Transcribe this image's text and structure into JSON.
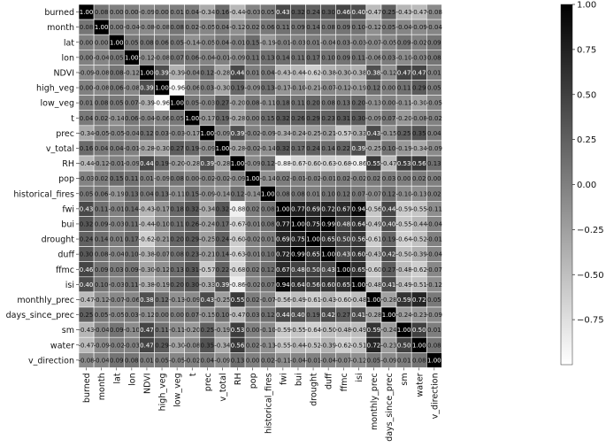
{
  "chart_data": {
    "type": "heatmap",
    "title": "",
    "xlabel": "",
    "ylabel": "",
    "variables": [
      "burned",
      "month",
      "lat",
      "lon",
      "NDVI",
      "high_veg",
      "low_veg",
      "t",
      "prec",
      "v_total",
      "RH",
      "pop",
      "historical_fires",
      "fwi",
      "bui",
      "drought",
      "duff",
      "ffmc",
      "isi",
      "monthly_prec",
      "days_since_prec",
      "sm",
      "water",
      "v_direction"
    ],
    "values": [
      [
        1.0,
        0.08,
        -0.0,
        -0.0,
        -0.09,
        -0.0,
        0.01,
        0.04,
        -0.34,
        0.16,
        -0.44,
        -0.03,
        0.05,
        0.43,
        0.32,
        0.24,
        0.3,
        0.46,
        0.4,
        -0.47,
        0.25,
        -0.43,
        -0.47,
        -0.08
      ],
      [
        0.08,
        1.0,
        -0.0,
        -0.04,
        -0.08,
        -0.08,
        0.08,
        0.02,
        -0.05,
        0.04,
        -0.12,
        0.02,
        0.06,
        0.11,
        0.09,
        0.14,
        0.08,
        0.09,
        0.1,
        -0.12,
        0.05,
        -0.04,
        -0.09,
        -0.04
      ],
      [
        -0.0,
        -0.0,
        1.0,
        0.05,
        0.08,
        0.06,
        0.05,
        -0.14,
        -0.05,
        0.04,
        -0.01,
        0.15,
        -0.19,
        -0.01,
        -0.03,
        0.01,
        -0.04,
        0.03,
        -0.03,
        -0.07,
        -0.05,
        0.09,
        -0.02,
        0.09
      ],
      [
        -0.0,
        -0.04,
        0.05,
        1.0,
        -0.12,
        -0.08,
        0.07,
        0.06,
        -0.04,
        -0.01,
        -0.09,
        0.11,
        0.13,
        0.14,
        0.11,
        0.17,
        0.1,
        0.09,
        0.11,
        -0.06,
        0.03,
        -0.1,
        -0.03,
        0.08
      ],
      [
        -0.09,
        -0.08,
        0.08,
        -0.12,
        1.0,
        0.39,
        -0.39,
        -0.04,
        0.12,
        -0.28,
        0.44,
        0.01,
        0.04,
        -0.43,
        -0.44,
        -0.62,
        -0.38,
        -0.3,
        -0.38,
        0.38,
        -0.12,
        0.47,
        0.47,
        0.01
      ],
      [
        -0.0,
        -0.08,
        0.06,
        -0.08,
        0.39,
        1.0,
        -0.96,
        -0.06,
        0.03,
        -0.3,
        0.19,
        -0.09,
        0.13,
        -0.17,
        -0.1,
        -0.21,
        -0.07,
        -0.12,
        -0.19,
        0.12,
        0.0,
        0.11,
        0.29,
        0.05
      ],
      [
        0.01,
        0.08,
        0.05,
        0.07,
        -0.39,
        -0.96,
        1.0,
        0.05,
        -0.03,
        0.27,
        -0.2,
        0.08,
        -0.11,
        0.18,
        0.11,
        0.2,
        0.08,
        0.13,
        0.2,
        -0.13,
        0.0,
        -0.11,
        -0.3,
        -0.05
      ],
      [
        0.04,
        0.02,
        -0.14,
        0.06,
        -0.04,
        -0.06,
        0.05,
        1.0,
        -0.17,
        0.19,
        -0.28,
        0.0,
        0.15,
        0.32,
        0.26,
        0.29,
        0.23,
        0.31,
        0.3,
        -0.09,
        0.07,
        -0.2,
        -0.08,
        -0.02
      ],
      [
        -0.34,
        -0.05,
        -0.05,
        -0.04,
        0.12,
        0.03,
        -0.03,
        -0.17,
        1.0,
        -0.09,
        0.39,
        -0.02,
        -0.09,
        -0.34,
        -0.24,
        -0.25,
        -0.21,
        -0.57,
        -0.33,
        0.43,
        -0.15,
        0.25,
        0.35,
        0.04
      ],
      [
        0.16,
        0.04,
        0.04,
        -0.01,
        -0.28,
        -0.3,
        0.27,
        0.19,
        -0.09,
        1.0,
        -0.28,
        -0.02,
        -0.14,
        0.32,
        0.17,
        0.24,
        0.14,
        0.22,
        0.39,
        -0.25,
        0.1,
        -0.19,
        -0.34,
        -0.09
      ],
      [
        -0.44,
        -0.12,
        -0.01,
        -0.09,
        0.44,
        0.19,
        -0.2,
        -0.28,
        0.39,
        -0.28,
        1.0,
        -0.09,
        0.12,
        -0.88,
        -0.67,
        -0.6,
        -0.63,
        -0.68,
        -0.86,
        0.55,
        -0.47,
        0.53,
        0.56,
        0.13
      ],
      [
        -0.03,
        0.02,
        0.15,
        0.11,
        0.01,
        -0.09,
        0.08,
        0.0,
        -0.02,
        -0.02,
        -0.09,
        1.0,
        -0.14,
        0.02,
        -0.01,
        -0.02,
        -0.01,
        0.02,
        -0.02,
        0.02,
        0.03,
        0.0,
        0.02,
        0.0
      ],
      [
        0.05,
        0.06,
        -0.19,
        0.13,
        0.04,
        0.13,
        -0.11,
        0.15,
        -0.09,
        -0.14,
        0.12,
        -0.14,
        1.0,
        0.08,
        0.08,
        0.01,
        0.1,
        0.12,
        0.07,
        -0.07,
        0.12,
        -0.1,
        -0.13,
        0.02
      ],
      [
        0.43,
        0.11,
        -0.01,
        0.14,
        -0.43,
        -0.17,
        0.18,
        0.32,
        -0.34,
        0.32,
        -0.88,
        0.02,
        0.08,
        1.0,
        0.77,
        0.69,
        0.72,
        0.67,
        0.94,
        -0.56,
        0.44,
        -0.59,
        -0.55,
        -0.11
      ],
      [
        0.32,
        0.09,
        -0.03,
        0.11,
        -0.44,
        -0.1,
        0.11,
        0.26,
        -0.24,
        0.17,
        -0.67,
        -0.01,
        0.08,
        0.77,
        1.0,
        0.75,
        0.99,
        0.48,
        0.64,
        -0.49,
        0.4,
        -0.55,
        -0.44,
        -0.04
      ],
      [
        0.24,
        0.14,
        0.01,
        0.17,
        -0.62,
        -0.21,
        0.2,
        0.29,
        -0.25,
        0.24,
        -0.6,
        -0.02,
        0.01,
        0.69,
        0.75,
        1.0,
        0.65,
        0.5,
        0.56,
        -0.61,
        0.19,
        -0.64,
        -0.52,
        -0.01
      ],
      [
        0.3,
        0.08,
        -0.04,
        0.1,
        -0.38,
        -0.07,
        0.08,
        0.23,
        -0.21,
        0.14,
        -0.63,
        -0.01,
        0.1,
        0.72,
        0.99,
        0.65,
        1.0,
        0.43,
        0.6,
        -0.43,
        0.42,
        -0.5,
        -0.39,
        -0.04
      ],
      [
        0.46,
        0.09,
        0.03,
        0.09,
        -0.3,
        -0.12,
        0.13,
        0.31,
        -0.57,
        0.22,
        -0.68,
        0.02,
        0.12,
        0.67,
        0.48,
        0.5,
        0.43,
        1.0,
        0.65,
        -0.6,
        0.27,
        -0.48,
        -0.62,
        -0.07
      ],
      [
        0.4,
        0.1,
        -0.03,
        0.11,
        -0.38,
        -0.19,
        0.2,
        0.3,
        -0.33,
        0.39,
        -0.86,
        -0.02,
        0.07,
        0.94,
        0.64,
        0.56,
        0.6,
        0.65,
        1.0,
        -0.48,
        0.41,
        -0.49,
        -0.51,
        -0.12
      ],
      [
        -0.47,
        -0.12,
        -0.07,
        -0.06,
        0.38,
        0.12,
        -0.13,
        -0.09,
        0.43,
        -0.25,
        0.55,
        0.02,
        -0.07,
        -0.56,
        -0.49,
        -0.61,
        -0.43,
        -0.6,
        -0.48,
        1.0,
        -0.28,
        0.59,
        0.72,
        0.05
      ],
      [
        0.25,
        0.05,
        -0.05,
        0.03,
        -0.12,
        0.0,
        0.0,
        0.07,
        -0.15,
        0.1,
        -0.47,
        0.03,
        0.12,
        0.44,
        0.4,
        0.19,
        0.42,
        0.27,
        0.41,
        -0.28,
        1.0,
        -0.24,
        -0.23,
        -0.09
      ],
      [
        -0.43,
        -0.04,
        0.09,
        -0.1,
        0.47,
        0.11,
        -0.11,
        -0.2,
        0.25,
        -0.19,
        0.53,
        0.0,
        -0.1,
        -0.59,
        -0.55,
        -0.64,
        -0.5,
        -0.48,
        -0.49,
        0.59,
        -0.24,
        1.0,
        0.5,
        0.01
      ],
      [
        -0.47,
        -0.09,
        -0.02,
        -0.03,
        0.47,
        0.29,
        -0.3,
        -0.08,
        0.35,
        -0.34,
        0.56,
        0.02,
        -0.13,
        -0.55,
        -0.44,
        -0.52,
        -0.39,
        -0.62,
        -0.51,
        0.72,
        -0.23,
        0.5,
        1.0,
        0.08
      ],
      [
        -0.08,
        -0.04,
        0.09,
        0.08,
        0.01,
        0.05,
        -0.05,
        -0.02,
        0.04,
        -0.09,
        0.13,
        0.0,
        0.02,
        -0.11,
        -0.04,
        -0.01,
        -0.04,
        -0.07,
        -0.12,
        0.05,
        -0.09,
        0.01,
        0.08,
        1.0
      ]
    ],
    "colorscale": {
      "min": -1.0,
      "max": 1.0,
      "min_color": "#ffffff",
      "max_color": "#000000"
    },
    "colorbar_ticks": [
      "1.00",
      "0.75",
      "0.50",
      "0.25",
      "0.00",
      "−0.25",
      "−0.50",
      "−0.75"
    ],
    "colorbar_tick_values": [
      1.0,
      0.75,
      0.5,
      0.25,
      0.0,
      -0.25,
      -0.5,
      -0.75
    ],
    "grid": true
  }
}
